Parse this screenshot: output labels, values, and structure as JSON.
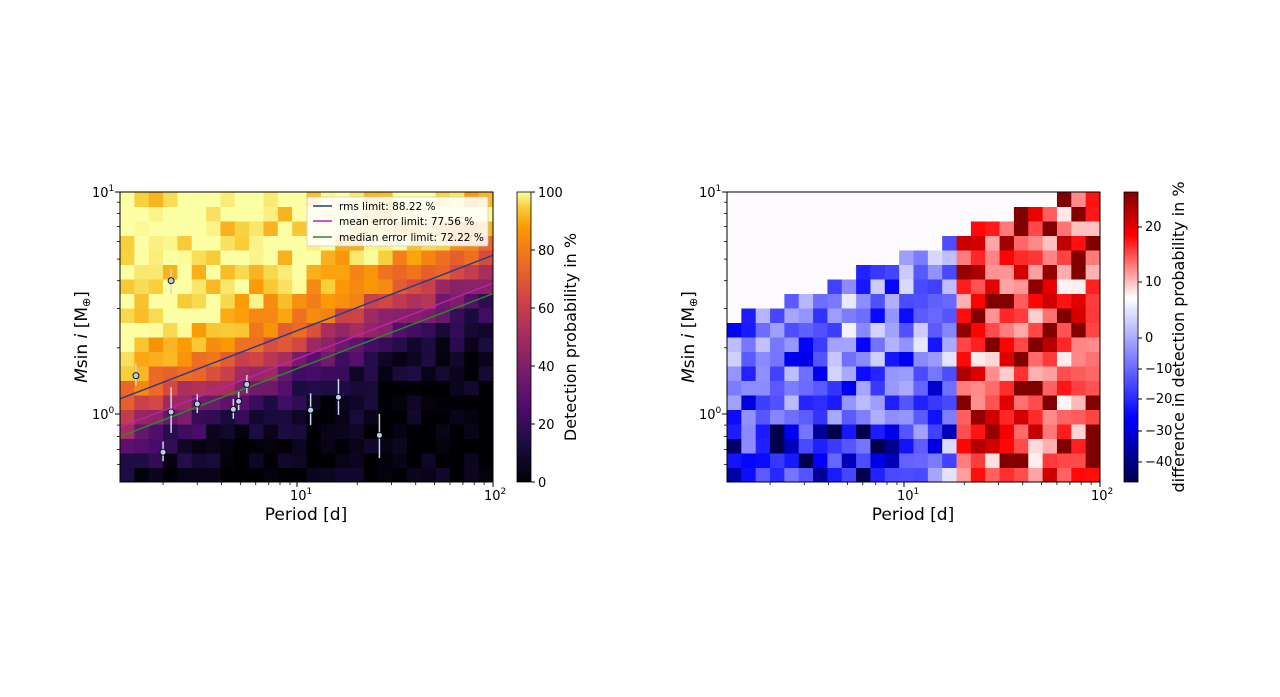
{
  "chart_data": [
    {
      "type": "heatmap",
      "xlabel": "Period [d]",
      "ylabel": "M sin i [M⊕]",
      "x_scale": "log",
      "y_scale": "log",
      "xlim": [
        1.2,
        100
      ],
      "ylim": [
        0.5,
        10
      ],
      "x_ticks": [
        "10^1",
        "10^2"
      ],
      "y_ticks": [
        "10^0",
        "10^1"
      ],
      "colormap": "inferno",
      "colorbar": {
        "label": "Detection probability in %",
        "range": [
          0,
          100
        ],
        "ticks": [
          "0",
          "20",
          "40",
          "60",
          "80",
          "100"
        ]
      },
      "legend_position": "top-right",
      "series": [
        {
          "name": "rms limit: 88.22 %",
          "color": "#1f3c8f",
          "points": [
            [
              1.2,
              1.18
            ],
            [
              100,
              5.2
            ]
          ]
        },
        {
          "name": "mean error limit: 77.56 %",
          "color": "#c020b0",
          "points": [
            [
              1.2,
              0.88
            ],
            [
              100,
              3.9
            ]
          ]
        },
        {
          "name": "median error limit: 72.22 %",
          "color": "#2a8c2a",
          "points": [
            [
              1.2,
              0.8
            ],
            [
              100,
              3.5
            ]
          ]
        }
      ],
      "planets": [
        {
          "period": 1.45,
          "msini": 1.5,
          "err_lo": 0.15,
          "err_hi": 0.2
        },
        {
          "period": 2.0,
          "msini": 0.68,
          "err_lo": 0.06,
          "err_hi": 0.08
        },
        {
          "period": 2.2,
          "msini": 1.03,
          "err_lo": 0.2,
          "err_hi": 0.3
        },
        {
          "period": 2.2,
          "msini": 4.0,
          "err_lo": 0.5,
          "err_hi": 0.5
        },
        {
          "period": 3.0,
          "msini": 1.12,
          "err_lo": 0.1,
          "err_hi": 0.12
        },
        {
          "period": 4.6,
          "msini": 1.06,
          "err_lo": 0.1,
          "err_hi": 0.12
        },
        {
          "period": 4.9,
          "msini": 1.15,
          "err_lo": 0.1,
          "err_hi": 0.12
        },
        {
          "period": 5.4,
          "msini": 1.37,
          "err_lo": 0.12,
          "err_hi": 0.14
        },
        {
          "period": 11.5,
          "msini": 1.05,
          "err_lo": 0.15,
          "err_hi": 0.2
        },
        {
          "period": 16.0,
          "msini": 1.2,
          "err_lo": 0.2,
          "err_hi": 0.25
        },
        {
          "period": 26.0,
          "msini": 0.81,
          "err_lo": 0.17,
          "err_hi": 0.2
        }
      ]
    },
    {
      "type": "heatmap",
      "xlabel": "Period [d]",
      "ylabel": "M sin i [M⊕]",
      "x_scale": "log",
      "y_scale": "log",
      "xlim": [
        1.2,
        100
      ],
      "ylim": [
        0.5,
        10
      ],
      "x_ticks": [
        "10^1",
        "10^2"
      ],
      "y_ticks": [
        "10^0",
        "10^1"
      ],
      "colormap": "seismic",
      "colorbar": {
        "label": "difference in detection probability in %",
        "range": [
          -47,
          27
        ],
        "ticks": [
          "20",
          "10",
          "0",
          "−10",
          "−20",
          "−30",
          "−40"
        ]
      }
    }
  ],
  "text": {
    "left_xlabel": "Period [d]",
    "right_xlabel": "Period [d]",
    "left_ylabel_main": "M",
    "left_ylabel_sin": "sin ",
    "left_ylabel_i": "i",
    "left_ylabel_unit": " [M",
    "left_ylabel_earth": "⊕",
    "left_ylabel_close": "]",
    "right_ylabel_main": "M",
    "right_ylabel_sin": "sin ",
    "right_ylabel_i": "i",
    "right_ylabel_unit": " [M",
    "right_ylabel_earth": "⊕",
    "right_ylabel_close": "]",
    "left_cblabel": "Detection probability in %",
    "right_cblabel": "difference in detection probability in %",
    "tick_base": "10",
    "tick_exp_0": "0",
    "tick_exp_1": "1",
    "tick_exp_2": "2",
    "legend_rms": "rms limit: 88.22 %",
    "legend_mean": "mean error limit: 77.56 %",
    "legend_median": "median error limit: 72.22 %",
    "cb_left_0": "0",
    "cb_left_20": "20",
    "cb_left_40": "40",
    "cb_left_60": "60",
    "cb_left_80": "80",
    "cb_left_100": "100",
    "cb_right_20": "20",
    "cb_right_10": "10",
    "cb_right_0": "0",
    "cb_right_m10": "−10",
    "cb_right_m20": "−20",
    "cb_right_m30": "−30",
    "cb_right_m40": "−40"
  }
}
